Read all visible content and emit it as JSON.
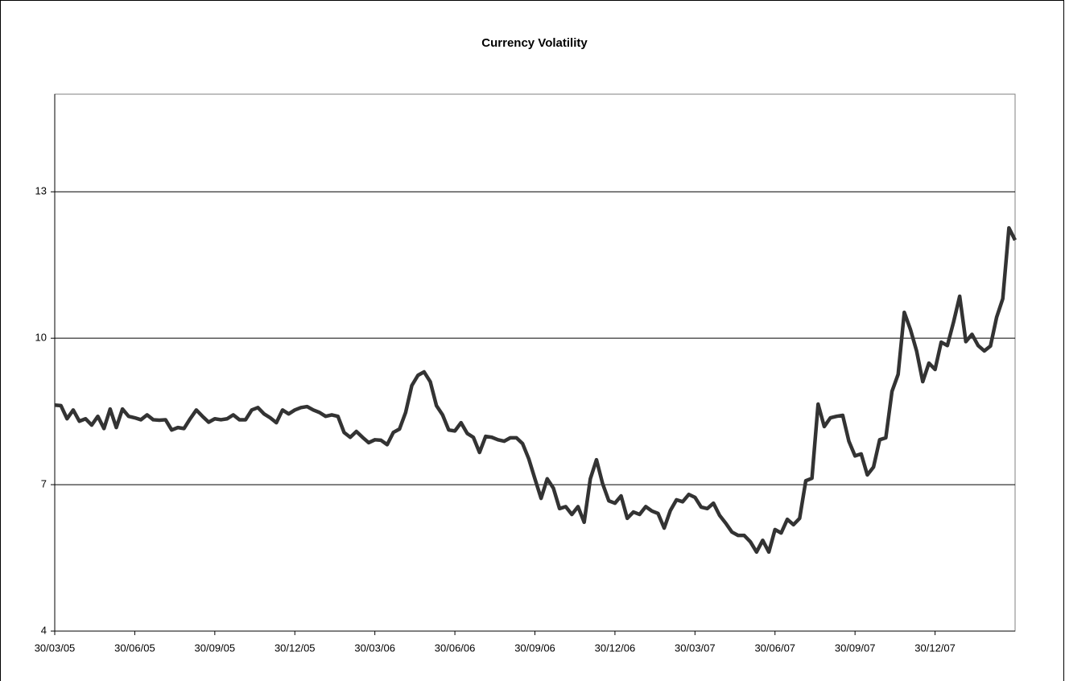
{
  "chart_data": {
    "type": "line",
    "title": "Currency Volatility",
    "categories": [
      "30/03/05",
      null,
      null,
      null,
      null,
      null,
      null,
      null,
      null,
      null,
      null,
      null,
      null,
      "30/06/05",
      null,
      null,
      null,
      null,
      null,
      null,
      null,
      null,
      null,
      null,
      null,
      null,
      "30/09/05",
      null,
      null,
      null,
      null,
      null,
      null,
      null,
      null,
      null,
      null,
      null,
      null,
      "30/12/05",
      null,
      null,
      null,
      null,
      null,
      null,
      null,
      null,
      null,
      null,
      null,
      null,
      "30/03/06",
      null,
      null,
      null,
      null,
      null,
      null,
      null,
      null,
      null,
      null,
      null,
      null,
      "30/06/06",
      null,
      null,
      null,
      null,
      null,
      null,
      null,
      null,
      null,
      null,
      null,
      null,
      "30/09/06",
      null,
      null,
      null,
      null,
      null,
      null,
      null,
      null,
      null,
      null,
      null,
      null,
      "30/12/06",
      null,
      null,
      null,
      null,
      null,
      null,
      null,
      null,
      null,
      null,
      null,
      null,
      "30/03/07",
      null,
      null,
      null,
      null,
      null,
      null,
      null,
      null,
      null,
      null,
      null,
      null,
      "30/06/07",
      null,
      null,
      null,
      null,
      null,
      null,
      null,
      null,
      null,
      null,
      null,
      null,
      "30/09/07",
      null,
      null,
      null,
      null,
      null,
      null,
      null,
      null,
      null,
      null,
      null,
      null,
      "30/12/07",
      null,
      null,
      null,
      null,
      null,
      null,
      null,
      null,
      null,
      null,
      null,
      null,
      null
    ],
    "values": [
      8.63,
      8.62,
      8.35,
      8.53,
      8.3,
      8.35,
      8.22,
      8.4,
      8.15,
      8.55,
      8.17,
      8.55,
      8.4,
      8.37,
      8.33,
      8.43,
      8.33,
      8.32,
      8.33,
      8.12,
      8.17,
      8.15,
      8.35,
      8.53,
      8.4,
      8.28,
      8.35,
      8.33,
      8.35,
      8.43,
      8.33,
      8.33,
      8.53,
      8.58,
      8.45,
      8.37,
      8.27,
      8.53,
      8.45,
      8.53,
      8.58,
      8.6,
      8.53,
      8.48,
      8.4,
      8.43,
      8.4,
      8.07,
      7.97,
      8.09,
      7.97,
      7.86,
      7.92,
      7.91,
      7.82,
      8.07,
      8.14,
      8.48,
      9.03,
      9.24,
      9.31,
      9.11,
      8.62,
      8.43,
      8.12,
      8.1,
      8.27,
      8.05,
      7.97,
      7.66,
      7.99,
      7.97,
      7.92,
      7.89,
      7.96,
      7.96,
      7.84,
      7.53,
      7.12,
      6.72,
      7.12,
      6.93,
      6.51,
      6.55,
      6.39,
      6.55,
      6.23,
      7.12,
      7.51,
      7.02,
      6.67,
      6.62,
      6.77,
      6.31,
      6.44,
      6.39,
      6.55,
      6.46,
      6.41,
      6.11,
      6.47,
      6.69,
      6.65,
      6.8,
      6.74,
      6.54,
      6.51,
      6.62,
      6.37,
      6.21,
      6.03,
      5.96,
      5.96,
      5.83,
      5.62,
      5.86,
      5.62,
      6.08,
      6.01,
      6.29,
      6.18,
      6.31,
      7.08,
      7.13,
      8.65,
      8.19,
      8.37,
      8.4,
      8.42,
      7.89,
      7.59,
      7.63,
      7.2,
      7.36,
      7.92,
      7.96,
      8.91,
      9.26,
      10.53,
      10.18,
      9.74,
      9.11,
      9.49,
      9.36,
      9.92,
      9.85,
      10.33,
      10.86,
      9.93,
      10.08,
      9.85,
      9.74,
      9.84,
      10.43,
      10.81,
      12.26,
      12.01
    ],
    "color": "#333333",
    "ylim": [
      4,
      15
    ],
    "yticks": [
      4,
      7,
      10,
      13
    ],
    "grid": true
  }
}
